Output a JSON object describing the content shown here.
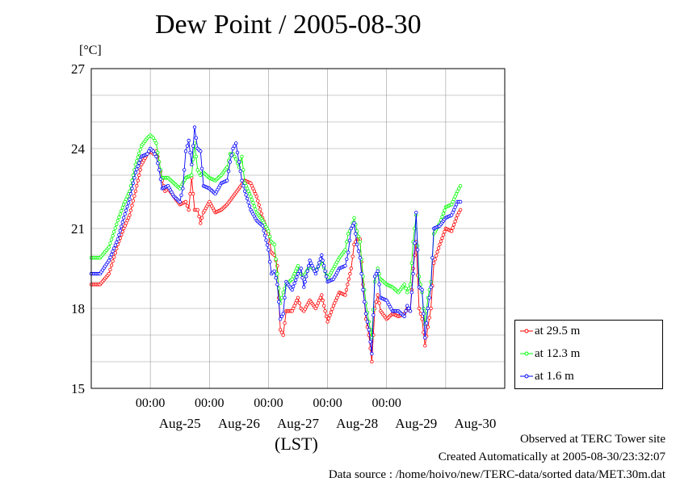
{
  "title": "Dew Point / 2005-08-30",
  "unit_label": "[°C]",
  "x_axis_label": "(LST)",
  "footer": {
    "site": "Observed at TERC Tower site",
    "created": "Created Automatically at 2005-08-30/23:32:07",
    "source": "Data source : /home/hoivo/new/TERC-data/sorted  data/MET.30m.dat"
  },
  "colors": {
    "s0": "#ff0000",
    "s1": "#00ff00",
    "s2": "#0000ff"
  },
  "chart_data": {
    "type": "line",
    "title": "Dew Point / 2005-08-30",
    "ylabel": "[°C]",
    "xlabel": "(LST)",
    "x_start_day": 24,
    "x_end_day": 31,
    "ylim": [
      15,
      27
    ],
    "y_ticks": [
      "15",
      "18",
      "21",
      "24",
      "27"
    ],
    "time_ticks": [
      "00:00",
      "00:00",
      "00:00",
      "00:00",
      "00:00"
    ],
    "day_labels": [
      "Aug-25",
      "Aug-26",
      "Aug-27",
      "Aug-28",
      "Aug-29",
      "Aug-30"
    ],
    "grid": true,
    "legend_position": "lower-right-outside",
    "series": [
      {
        "name": "at 29.5 m",
        "day_points": [
          [
            24.0,
            18.9
          ],
          [
            24.15,
            18.9
          ],
          [
            24.3,
            19.3
          ],
          [
            24.45,
            20.4
          ],
          [
            24.55,
            21.0
          ],
          [
            24.65,
            21.5
          ],
          [
            24.75,
            22.4
          ],
          [
            24.85,
            23.4
          ],
          [
            24.95,
            23.8
          ],
          [
            25.0,
            23.9
          ],
          [
            25.05,
            23.8
          ],
          [
            25.1,
            23.9
          ],
          [
            25.15,
            23.5
          ],
          [
            25.2,
            22.8
          ],
          [
            25.25,
            22.4
          ],
          [
            25.3,
            22.5
          ],
          [
            25.4,
            22.2
          ],
          [
            25.5,
            21.9
          ],
          [
            25.6,
            22.0
          ],
          [
            25.65,
            21.7
          ],
          [
            25.7,
            22.9
          ],
          [
            25.75,
            21.7
          ],
          [
            25.8,
            21.7
          ],
          [
            25.85,
            21.2
          ],
          [
            25.9,
            21.6
          ],
          [
            26.0,
            22.0
          ],
          [
            26.1,
            21.6
          ],
          [
            26.2,
            21.7
          ],
          [
            26.3,
            21.9
          ],
          [
            26.4,
            22.2
          ],
          [
            26.5,
            22.5
          ],
          [
            26.6,
            22.8
          ],
          [
            26.7,
            22.7
          ],
          [
            26.8,
            22.2
          ],
          [
            26.9,
            21.4
          ],
          [
            27.0,
            20.8
          ],
          [
            27.05,
            20.1
          ],
          [
            27.1,
            20.0
          ],
          [
            27.15,
            19.6
          ],
          [
            27.2,
            17.2
          ],
          [
            27.25,
            17.0
          ],
          [
            27.3,
            17.9
          ],
          [
            27.4,
            17.9
          ],
          [
            27.5,
            18.4
          ],
          [
            27.55,
            18.0
          ],
          [
            27.6,
            17.9
          ],
          [
            27.7,
            18.3
          ],
          [
            27.8,
            18.0
          ],
          [
            27.9,
            18.5
          ],
          [
            28.0,
            17.5
          ],
          [
            28.1,
            18.1
          ],
          [
            28.2,
            18.6
          ],
          [
            28.3,
            18.5
          ],
          [
            28.4,
            19.5
          ],
          [
            28.45,
            20.4
          ],
          [
            28.5,
            20.6
          ],
          [
            28.55,
            20.6
          ],
          [
            28.6,
            18.9
          ],
          [
            28.65,
            17.6
          ],
          [
            28.7,
            17.0
          ],
          [
            28.75,
            16.0
          ],
          [
            28.8,
            18.0
          ],
          [
            28.85,
            18.5
          ],
          [
            28.9,
            17.9
          ],
          [
            29.0,
            17.6
          ],
          [
            29.1,
            17.8
          ],
          [
            29.2,
            17.7
          ],
          [
            29.3,
            17.8
          ],
          [
            29.35,
            18.0
          ],
          [
            29.4,
            17.9
          ],
          [
            29.45,
            19.5
          ],
          [
            29.5,
            20.5
          ],
          [
            29.55,
            18.0
          ],
          [
            29.6,
            17.6
          ],
          [
            29.65,
            16.6
          ],
          [
            29.7,
            17.3
          ],
          [
            29.75,
            18.0
          ],
          [
            29.8,
            19.7
          ],
          [
            29.9,
            20.4
          ],
          [
            30.0,
            21.0
          ],
          [
            30.1,
            20.9
          ],
          [
            30.2,
            21.5
          ],
          [
            30.25,
            21.7
          ]
        ]
      },
      {
        "name": "at 12.3 m",
        "day_points": [
          [
            24.0,
            19.9
          ],
          [
            24.15,
            19.9
          ],
          [
            24.3,
            20.3
          ],
          [
            24.45,
            21.3
          ],
          [
            24.55,
            21.9
          ],
          [
            24.65,
            22.4
          ],
          [
            24.75,
            23.4
          ],
          [
            24.85,
            24.1
          ],
          [
            24.95,
            24.4
          ],
          [
            25.0,
            24.5
          ],
          [
            25.05,
            24.4
          ],
          [
            25.1,
            24.2
          ],
          [
            25.15,
            23.5
          ],
          [
            25.2,
            22.9
          ],
          [
            25.3,
            22.9
          ],
          [
            25.4,
            22.7
          ],
          [
            25.5,
            22.5
          ],
          [
            25.6,
            22.9
          ],
          [
            25.7,
            23.0
          ],
          [
            25.75,
            24.2
          ],
          [
            25.8,
            23.2
          ],
          [
            25.85,
            23.0
          ],
          [
            25.9,
            23.1
          ],
          [
            26.0,
            22.9
          ],
          [
            26.1,
            22.8
          ],
          [
            26.2,
            23.0
          ],
          [
            26.3,
            23.3
          ],
          [
            26.35,
            23.8
          ],
          [
            26.4,
            23.8
          ],
          [
            26.45,
            23.6
          ],
          [
            26.5,
            23.3
          ],
          [
            26.55,
            23.7
          ],
          [
            26.6,
            22.7
          ],
          [
            26.7,
            22.2
          ],
          [
            26.8,
            21.6
          ],
          [
            26.9,
            21.3
          ],
          [
            27.0,
            20.9
          ],
          [
            27.05,
            20.5
          ],
          [
            27.1,
            20.4
          ],
          [
            27.15,
            19.3
          ],
          [
            27.2,
            18.2
          ],
          [
            27.25,
            18.6
          ],
          [
            27.3,
            18.9
          ],
          [
            27.4,
            19.1
          ],
          [
            27.5,
            19.6
          ],
          [
            27.55,
            19.3
          ],
          [
            27.6,
            19.2
          ],
          [
            27.7,
            19.6
          ],
          [
            27.8,
            19.4
          ],
          [
            27.9,
            19.8
          ],
          [
            28.0,
            19.1
          ],
          [
            28.1,
            19.5
          ],
          [
            28.2,
            19.9
          ],
          [
            28.3,
            20.2
          ],
          [
            28.35,
            20.8
          ],
          [
            28.4,
            21.0
          ],
          [
            28.45,
            21.4
          ],
          [
            28.5,
            20.9
          ],
          [
            28.55,
            20.5
          ],
          [
            28.6,
            19.2
          ],
          [
            28.65,
            18.2
          ],
          [
            28.7,
            17.5
          ],
          [
            28.75,
            16.9
          ],
          [
            28.8,
            19.0
          ],
          [
            28.85,
            19.5
          ],
          [
            28.9,
            19.1
          ],
          [
            29.0,
            18.9
          ],
          [
            29.1,
            18.8
          ],
          [
            29.2,
            18.6
          ],
          [
            29.3,
            18.9
          ],
          [
            29.35,
            18.6
          ],
          [
            29.4,
            18.9
          ],
          [
            29.45,
            20.5
          ],
          [
            29.5,
            21.5
          ],
          [
            29.55,
            19.2
          ],
          [
            29.6,
            18.6
          ],
          [
            29.65,
            17.4
          ],
          [
            29.7,
            18.4
          ],
          [
            29.75,
            19.0
          ],
          [
            29.8,
            20.8
          ],
          [
            29.9,
            21.2
          ],
          [
            30.0,
            21.8
          ],
          [
            30.1,
            21.9
          ],
          [
            30.2,
            22.4
          ],
          [
            30.25,
            22.6
          ]
        ]
      },
      {
        "name": "at 1.6 m",
        "day_points": [
          [
            24.0,
            19.3
          ],
          [
            24.15,
            19.3
          ],
          [
            24.3,
            19.8
          ],
          [
            24.45,
            20.6
          ],
          [
            24.55,
            21.4
          ],
          [
            24.65,
            22.1
          ],
          [
            24.75,
            23.1
          ],
          [
            24.85,
            23.7
          ],
          [
            24.95,
            23.8
          ],
          [
            25.0,
            24.0
          ],
          [
            25.05,
            23.9
          ],
          [
            25.1,
            23.7
          ],
          [
            25.15,
            23.2
          ],
          [
            25.2,
            22.5
          ],
          [
            25.3,
            22.6
          ],
          [
            25.4,
            22.2
          ],
          [
            25.5,
            22.0
          ],
          [
            25.55,
            22.5
          ],
          [
            25.6,
            23.9
          ],
          [
            25.65,
            24.3
          ],
          [
            25.7,
            23.4
          ],
          [
            25.75,
            24.8
          ],
          [
            25.8,
            24.0
          ],
          [
            25.85,
            23.9
          ],
          [
            25.9,
            22.6
          ],
          [
            26.0,
            22.5
          ],
          [
            26.1,
            22.3
          ],
          [
            26.2,
            22.7
          ],
          [
            26.3,
            22.8
          ],
          [
            26.35,
            23.5
          ],
          [
            26.4,
            24.0
          ],
          [
            26.45,
            24.2
          ],
          [
            26.5,
            23.5
          ],
          [
            26.55,
            22.8
          ],
          [
            26.6,
            22.4
          ],
          [
            26.7,
            21.7
          ],
          [
            26.8,
            21.3
          ],
          [
            26.9,
            21.1
          ],
          [
            27.0,
            20.2
          ],
          [
            27.05,
            19.3
          ],
          [
            27.1,
            19.4
          ],
          [
            27.15,
            18.9
          ],
          [
            27.2,
            17.6
          ],
          [
            27.25,
            17.8
          ],
          [
            27.3,
            19.0
          ],
          [
            27.4,
            18.7
          ],
          [
            27.5,
            19.3
          ],
          [
            27.55,
            19.5
          ],
          [
            27.6,
            18.8
          ],
          [
            27.7,
            19.8
          ],
          [
            27.8,
            19.3
          ],
          [
            27.9,
            20.0
          ],
          [
            28.0,
            19.0
          ],
          [
            28.1,
            19.1
          ],
          [
            28.2,
            19.5
          ],
          [
            28.3,
            19.6
          ],
          [
            28.35,
            20.1
          ],
          [
            28.4,
            21.0
          ],
          [
            28.45,
            21.2
          ],
          [
            28.5,
            20.4
          ],
          [
            28.55,
            19.9
          ],
          [
            28.6,
            18.7
          ],
          [
            28.65,
            17.8
          ],
          [
            28.7,
            17.2
          ],
          [
            28.75,
            16.3
          ],
          [
            28.8,
            19.2
          ],
          [
            28.85,
            19.4
          ],
          [
            28.9,
            18.4
          ],
          [
            29.0,
            18.3
          ],
          [
            29.1,
            17.9
          ],
          [
            29.2,
            17.9
          ],
          [
            29.3,
            17.7
          ],
          [
            29.35,
            18.1
          ],
          [
            29.4,
            17.9
          ],
          [
            29.45,
            19.3
          ],
          [
            29.5,
            21.6
          ],
          [
            29.55,
            18.8
          ],
          [
            29.6,
            18.7
          ],
          [
            29.65,
            16.9
          ],
          [
            29.7,
            18.0
          ],
          [
            29.75,
            18.8
          ],
          [
            29.8,
            21.0
          ],
          [
            29.9,
            21.1
          ],
          [
            30.0,
            21.4
          ],
          [
            30.1,
            21.5
          ],
          [
            30.2,
            22.0
          ],
          [
            30.25,
            22.0
          ]
        ]
      }
    ]
  }
}
